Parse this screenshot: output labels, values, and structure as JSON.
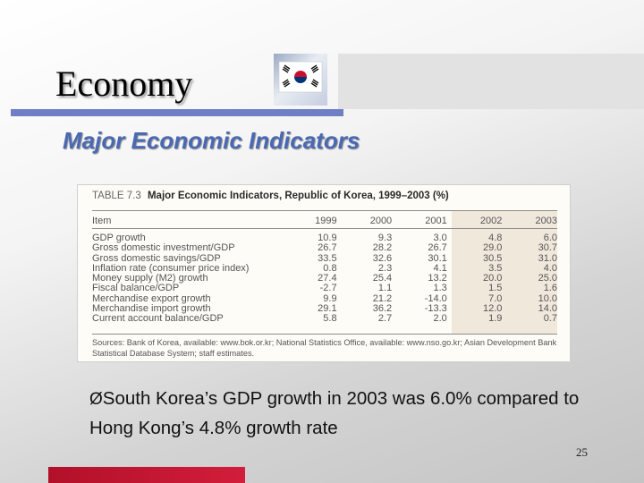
{
  "slide": {
    "title": "Economy",
    "subtitle": "Major Economic Indicators",
    "bullet_arrow": "Ø",
    "bullet_text": "South Korea’s GDP growth in 2003 was 6.0% compared to Hong Kong’s 4.8% growth rate",
    "page_number": "25"
  },
  "table": {
    "number": "TABLE 7.3",
    "caption": "Major Economic Indicators, Republic of Korea, 1999–2003 (%)",
    "columns": [
      "Item",
      "1999",
      "2000",
      "2001",
      "2002",
      "2003"
    ],
    "rows": [
      {
        "item": "GDP growth",
        "values": [
          "10.9",
          "9.3",
          "3.0",
          "4.8",
          "6.0"
        ]
      },
      {
        "item": "Gross domestic investment/GDP",
        "values": [
          "26.7",
          "28.2",
          "26.7",
          "29.0",
          "30.7"
        ]
      },
      {
        "item": "Gross domestic savings/GDP",
        "values": [
          "33.5",
          "32.6",
          "30.1",
          "30.5",
          "31.0"
        ]
      },
      {
        "item": "Inflation rate (consumer price index)",
        "values": [
          "0.8",
          "2.3",
          "4.1",
          "3.5",
          "4.0"
        ]
      },
      {
        "item": "Money supply (M2) growth",
        "values": [
          "27.4",
          "25.4",
          "13.2",
          "20.0",
          "25.0"
        ]
      },
      {
        "item": "Fiscal balance/GDP",
        "values": [
          "-2.7",
          "1.1",
          "1.3",
          "1.5",
          "1.6"
        ]
      },
      {
        "item": "Merchandise export growth",
        "values": [
          "9.9",
          "21.2",
          "-14.0",
          "7.0",
          "10.0"
        ]
      },
      {
        "item": "Merchandise import growth",
        "values": [
          "29.1",
          "36.2",
          "-13.3",
          "12.0",
          "14.0"
        ]
      },
      {
        "item": "Current account balance/GDP",
        "values": [
          "5.8",
          "2.7",
          "2.0",
          "1.9",
          "0.7"
        ]
      }
    ],
    "source": "Sources: Bank of Korea, available: www.bok.or.kr; National Statistics Office, available: www.nso.go.kr; Asian Development Bank Statistical Database System; staff estimates."
  },
  "colors": {
    "title_rule": "#6f7fc5",
    "subtitle": "#4a69b4",
    "bottom_bar": "#c4162f",
    "forecast_highlight": "#f1e8dc"
  },
  "icons": {
    "flag": "south-korea-flag-icon"
  }
}
